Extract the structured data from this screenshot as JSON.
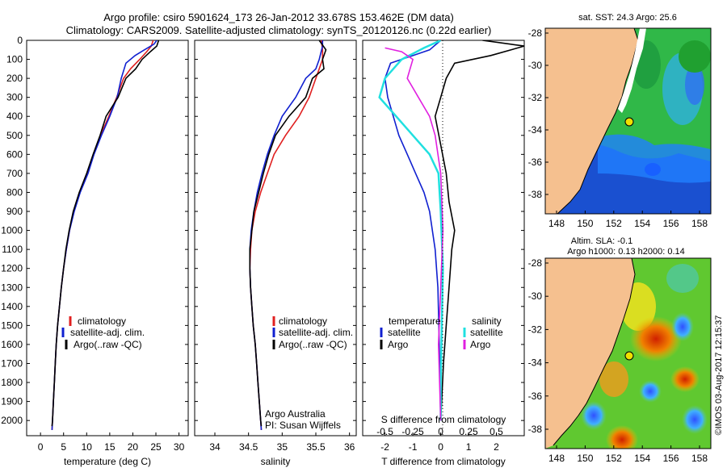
{
  "title_line1": "Argo profile: csiro 5901624_173 26-Jan-2012 33.678S 153.462E (DM data)",
  "title_line2": "Climatology: CARS2009. Satellite-adjusted climatology: synTS_20120126.nc (0.22d earlier)",
  "depth_ticks": [
    0,
    100,
    200,
    300,
    400,
    500,
    600,
    700,
    800,
    900,
    1000,
    1100,
    1200,
    1300,
    1400,
    1500,
    1600,
    1700,
    1800,
    1900,
    2000
  ],
  "temperature_panel": {
    "xlabel": "temperature (deg C)",
    "xticks": [
      "0",
      "5",
      "10",
      "15",
      "20",
      "25",
      "30"
    ],
    "legend": [
      "climatology",
      "satellite-adj. clim.",
      "Argo(..raw -QC)"
    ]
  },
  "salinity_panel": {
    "xlabel": "salinity",
    "xticks": [
      "34",
      "34.5",
      "35",
      "35.5",
      "36"
    ],
    "legend": [
      "climatology",
      "satellite-adj. clim.",
      "Argo(..raw -QC)"
    ],
    "credit_line1": "Argo Australia",
    "credit_line2": "PI: Susan Wijffels"
  },
  "difference_panel": {
    "xlabel_bottom": "T difference from climatology",
    "xlabel_top": "S difference from climatology",
    "xticks_t": [
      "-2",
      "-1",
      "0",
      "1",
      "2"
    ],
    "xticks_s": [
      "-0.5",
      "-0.25",
      "0",
      "0.25",
      "0.5"
    ],
    "legend_temperature_title": "temperature",
    "legend_salinity_title": "salinity",
    "legend_temperature": [
      "satellite",
      "Argo"
    ],
    "legend_salinity": [
      "satellite",
      "Argo"
    ]
  },
  "map_sst": {
    "title": "sat. SST: 24.3 Argo: 25.6",
    "yticks": [
      "-28",
      "-30",
      "-32",
      "-34",
      "-36",
      "-38"
    ],
    "xticks": [
      "148",
      "150",
      "152",
      "154",
      "156",
      "158"
    ]
  },
  "map_sla": {
    "title_line1": "Altim. SLA: -0.1",
    "title_line2": "Argo h1000: 0.13 h2000: 0.14",
    "yticks": [
      "-28",
      "-30",
      "-32",
      "-34",
      "-36",
      "-38"
    ],
    "xticks": [
      "148",
      "150",
      "152",
      "154",
      "156",
      "158"
    ]
  },
  "side_stamp": "©IMOS 03-Aug-2017 12:15:37",
  "colors": {
    "climatology": "#e02020",
    "satellite": "#1020d0",
    "argo": "#000000",
    "sat_salinity_diff": "#20e0e0",
    "argo_salinity_diff": "#e020e0",
    "land": "#f5c08f"
  },
  "chart_data": [
    {
      "type": "line",
      "title": "",
      "xlabel": "temperature (deg C)",
      "ylabel": "",
      "xlim": [
        -3,
        32
      ],
      "ylim": [
        2080,
        0
      ],
      "series": [
        {
          "name": "climatology",
          "points": [
            [
              24.4,
              0
            ],
            [
              24,
              30
            ],
            [
              23,
              60
            ],
            [
              21.5,
              100
            ],
            [
              19.5,
              150
            ],
            [
              18,
              200
            ],
            [
              16.5,
              300
            ],
            [
              14.8,
              400
            ],
            [
              13,
              500
            ],
            [
              11.5,
              600
            ],
            [
              10.2,
              700
            ],
            [
              8.5,
              800
            ],
            [
              7.2,
              900
            ],
            [
              6.3,
              1000
            ],
            [
              5.6,
              1100
            ],
            [
              5,
              1200
            ],
            [
              4.5,
              1300
            ],
            [
              4.1,
              1400
            ],
            [
              3.7,
              1500
            ],
            [
              3.4,
              1600
            ],
            [
              3.2,
              1700
            ],
            [
              3,
              1800
            ],
            [
              2.8,
              1900
            ],
            [
              2.6,
              2000
            ],
            [
              2.5,
              2050
            ]
          ]
        },
        {
          "name": "satellite-adj. clim.",
          "points": [
            [
              25.2,
              0
            ],
            [
              24.6,
              20
            ],
            [
              22.5,
              50
            ],
            [
              20.5,
              80
            ],
            [
              18.5,
              120
            ],
            [
              17.5,
              200
            ],
            [
              16.6,
              300
            ],
            [
              15,
              400
            ],
            [
              13.2,
              500
            ],
            [
              11.6,
              600
            ],
            [
              10.3,
              700
            ],
            [
              8.6,
              800
            ],
            [
              7.3,
              900
            ],
            [
              6.3,
              1000
            ],
            [
              5.6,
              1100
            ],
            [
              5,
              1200
            ],
            [
              4.5,
              1300
            ],
            [
              4.1,
              1400
            ],
            [
              3.7,
              1500
            ],
            [
              3.4,
              1600
            ],
            [
              3.2,
              1700
            ],
            [
              3,
              1800
            ],
            [
              2.8,
              1900
            ],
            [
              2.6,
              2000
            ],
            [
              2.5,
              2050
            ]
          ]
        },
        {
          "name": "Argo(..raw -QC)",
          "points": [
            [
              25.6,
              0
            ],
            [
              25.2,
              30
            ],
            [
              23.8,
              60
            ],
            [
              22,
              100
            ],
            [
              20.6,
              150
            ],
            [
              18.5,
              200
            ],
            [
              16.8,
              300
            ],
            [
              14.2,
              400
            ],
            [
              12.9,
              500
            ],
            [
              11.4,
              600
            ],
            [
              10,
              700
            ],
            [
              8.4,
              800
            ],
            [
              7.1,
              900
            ],
            [
              6.2,
              1000
            ],
            [
              5.5,
              1100
            ],
            [
              5,
              1200
            ],
            [
              4.5,
              1300
            ],
            [
              4.1,
              1400
            ],
            [
              3.7,
              1500
            ],
            [
              3.4,
              1600
            ],
            [
              3.2,
              1700
            ],
            [
              3,
              1800
            ],
            [
              2.8,
              1900
            ],
            [
              2.6,
              2000
            ],
            [
              2.5,
              2030
            ]
          ]
        }
      ]
    },
    {
      "type": "line",
      "title": "",
      "xlabel": "salinity",
      "ylabel": "",
      "xlim": [
        33.7,
        36.1
      ],
      "ylim": [
        2080,
        0
      ],
      "series": [
        {
          "name": "climatology",
          "points": [
            [
              35.58,
              0
            ],
            [
              35.6,
              50
            ],
            [
              35.6,
              100
            ],
            [
              35.55,
              150
            ],
            [
              35.5,
              200
            ],
            [
              35.4,
              300
            ],
            [
              35.25,
              400
            ],
            [
              35.05,
              500
            ],
            [
              34.88,
              600
            ],
            [
              34.78,
              700
            ],
            [
              34.68,
              800
            ],
            [
              34.6,
              900
            ],
            [
              34.55,
              1000
            ],
            [
              34.53,
              1100
            ],
            [
              34.52,
              1200
            ],
            [
              34.53,
              1300
            ],
            [
              34.55,
              1400
            ],
            [
              34.57,
              1500
            ],
            [
              34.6,
              1600
            ],
            [
              34.62,
              1700
            ],
            [
              34.64,
              1800
            ],
            [
              34.66,
              1900
            ],
            [
              34.68,
              2000
            ],
            [
              34.69,
              2050
            ]
          ]
        },
        {
          "name": "satellite-adj. clim.",
          "points": [
            [
              35.6,
              0
            ],
            [
              35.6,
              30
            ],
            [
              35.55,
              100
            ],
            [
              35.5,
              150
            ],
            [
              35.35,
              200
            ],
            [
              35.2,
              300
            ],
            [
              35.0,
              400
            ],
            [
              34.88,
              500
            ],
            [
              34.78,
              600
            ],
            [
              34.7,
              700
            ],
            [
              34.63,
              800
            ],
            [
              34.58,
              900
            ],
            [
              34.54,
              1000
            ],
            [
              34.52,
              1100
            ],
            [
              34.52,
              1200
            ],
            [
              34.53,
              1300
            ],
            [
              34.55,
              1400
            ],
            [
              34.57,
              1500
            ],
            [
              34.6,
              1600
            ],
            [
              34.62,
              1700
            ],
            [
              34.64,
              1800
            ],
            [
              34.66,
              1900
            ],
            [
              34.68,
              2000
            ],
            [
              34.69,
              2050
            ]
          ]
        },
        {
          "name": "Argo(..raw -QC)",
          "points": [
            [
              35.55,
              0
            ],
            [
              35.65,
              50
            ],
            [
              35.6,
              100
            ],
            [
              35.62,
              150
            ],
            [
              35.45,
              200
            ],
            [
              35.4,
              250
            ],
            [
              35.35,
              300
            ],
            [
              35.1,
              400
            ],
            [
              34.9,
              500
            ],
            [
              34.8,
              600
            ],
            [
              34.72,
              700
            ],
            [
              34.65,
              800
            ],
            [
              34.58,
              900
            ],
            [
              34.55,
              1000
            ],
            [
              34.52,
              1100
            ],
            [
              34.52,
              1200
            ],
            [
              34.53,
              1300
            ],
            [
              34.55,
              1400
            ],
            [
              34.57,
              1500
            ],
            [
              34.6,
              1600
            ],
            [
              34.62,
              1700
            ],
            [
              34.64,
              1800
            ],
            [
              34.66,
              1900
            ],
            [
              34.68,
              2000
            ],
            [
              34.69,
              2030
            ]
          ]
        }
      ]
    },
    {
      "type": "line",
      "title": "",
      "xlabel": "T difference from climatology",
      "x2label": "S difference from climatology",
      "ylabel": "",
      "xlim": [
        -2.8,
        3.0
      ],
      "ylim": [
        2080,
        0
      ],
      "series": [
        {
          "name": "temperature satellite",
          "points": [
            [
              0,
              0
            ],
            [
              -0.4,
              50
            ],
            [
              -1.8,
              120
            ],
            [
              -2.0,
              200
            ],
            [
              -1.9,
              300
            ],
            [
              -1.7,
              400
            ],
            [
              -1.5,
              500
            ],
            [
              -1.2,
              600
            ],
            [
              -0.9,
              700
            ],
            [
              -0.6,
              800
            ],
            [
              -0.4,
              900
            ],
            [
              -0.2,
              1100
            ],
            [
              -0.1,
              1300
            ],
            [
              -0.05,
              1600
            ],
            [
              0,
              2000
            ]
          ]
        },
        {
          "name": "temperature Argo",
          "points": [
            [
              1.5,
              0
            ],
            [
              2.5,
              20
            ],
            [
              3.0,
              30
            ],
            [
              1.8,
              80
            ],
            [
              0.5,
              120
            ],
            [
              0.2,
              200
            ],
            [
              0,
              300
            ],
            [
              -0.2,
              400
            ],
            [
              0,
              550
            ],
            [
              0.2,
              700
            ],
            [
              0.3,
              850
            ],
            [
              0.5,
              1000
            ],
            [
              0.4,
              1100
            ],
            [
              0.3,
              1300
            ],
            [
              0.2,
              1500
            ],
            [
              0.1,
              1700
            ],
            [
              0,
              2000
            ]
          ]
        },
        {
          "name": "salinity satellite",
          "points": [
            [
              0,
              0
            ],
            [
              -0.15,
              40
            ],
            [
              -0.35,
              100
            ],
            [
              -0.5,
              200
            ],
            [
              -0.55,
              300
            ],
            [
              -0.4,
              400
            ],
            [
              -0.25,
              500
            ],
            [
              -0.1,
              600
            ],
            [
              -0.02,
              700
            ],
            [
              0,
              900
            ],
            [
              0.02,
              1200
            ],
            [
              0.01,
              1500
            ],
            [
              0,
              1800
            ],
            [
              0,
              2000
            ]
          ]
        },
        {
          "name": "salinity Argo",
          "points": [
            [
              -0.5,
              40
            ],
            [
              -0.35,
              60
            ],
            [
              -0.25,
              100
            ],
            [
              -0.3,
              200
            ],
            [
              -0.2,
              300
            ],
            [
              -0.1,
              400
            ],
            [
              -0.05,
              500
            ],
            [
              0,
              700
            ],
            [
              0.02,
              1000
            ],
            [
              0,
              1300
            ],
            [
              -0.02,
              1600
            ],
            [
              0,
              2000
            ]
          ]
        }
      ]
    }
  ]
}
